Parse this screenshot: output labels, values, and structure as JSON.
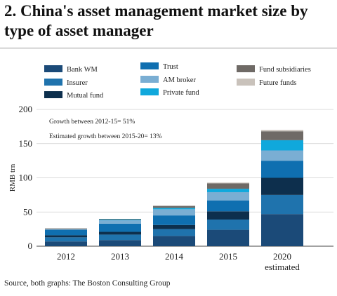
{
  "header": {
    "title": "2. China's asset management market size by type of asset manager"
  },
  "footer": {
    "source": "Source, both graphs: The Boston Consulting Group"
  },
  "chart_data": {
    "type": "bar",
    "stacked": true,
    "title": "2. China's asset management market size by type of asset manager",
    "xlabel": "",
    "ylabel": "RMB trn",
    "ylim": [
      0,
      200
    ],
    "yticks": [
      0,
      50,
      100,
      150,
      200
    ],
    "grid": true,
    "categories": [
      "2012",
      "2013",
      "2014",
      "2015",
      "2020 estimated"
    ],
    "series": [
      {
        "name": "Bank WM",
        "color": "#1b4a78",
        "values": [
          7,
          9,
          15,
          24,
          47
        ]
      },
      {
        "name": "Insurer",
        "color": "#1f73ad",
        "values": [
          6,
          8,
          10,
          15,
          28
        ]
      },
      {
        "name": "Mutual fund",
        "color": "#0d2f4d",
        "values": [
          3,
          4,
          6,
          12,
          25
        ]
      },
      {
        "name": "Trust",
        "color": "#0f6fb0",
        "values": [
          8,
          12,
          14,
          16,
          25
        ]
      },
      {
        "name": "AM broker",
        "color": "#7aaed3",
        "values": [
          1,
          5,
          9,
          12,
          15
        ]
      },
      {
        "name": "Private fund",
        "color": "#10a8dc",
        "values": [
          0,
          1,
          2,
          5,
          15
        ]
      },
      {
        "name": "Fund subsidiaries",
        "color": "#6f6a66",
        "values": [
          1,
          1,
          3,
          8,
          13
        ]
      },
      {
        "name": "Future funds",
        "color": "#c9c2bb",
        "values": [
          0,
          0,
          0,
          1,
          2
        ]
      }
    ],
    "annotations": [
      "Growth between 2012-15= 51%",
      "Estimated growth between 2015-20= 13%"
    ],
    "legend_layout": {
      "columns": [
        [
          "Bank WM",
          "Insurer",
          "Mutual fund"
        ],
        [
          "Trust",
          "AM broker",
          "Private fund"
        ],
        [
          "Fund subsidiaries",
          "Future funds"
        ]
      ]
    }
  }
}
